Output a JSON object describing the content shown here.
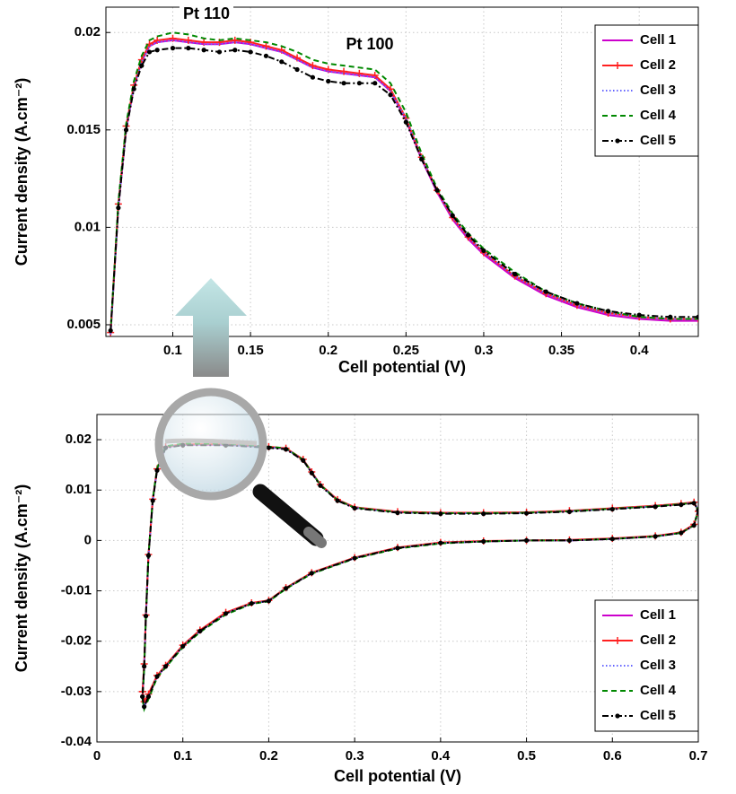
{
  "chart_data": [
    {
      "type": "line",
      "annotations": [
        "Pt 110",
        "Pt 100"
      ],
      "x_label": "Cell potential (V)",
      "y_label": "Current density (A.cm⁻²)",
      "xlim": [
        0.057,
        0.438
      ],
      "ylim": [
        0.0044,
        0.0213
      ],
      "xticks": [
        0.1,
        0.15,
        0.2,
        0.25,
        0.3,
        0.35,
        0.4
      ],
      "yticks": [
        0.005,
        0.01,
        0.015,
        0.02
      ],
      "grid": true,
      "legend": "upper right",
      "x": [
        0.06,
        0.065,
        0.07,
        0.075,
        0.08,
        0.085,
        0.09,
        0.1,
        0.11,
        0.12,
        0.13,
        0.14,
        0.15,
        0.16,
        0.17,
        0.18,
        0.19,
        0.2,
        0.21,
        0.22,
        0.23,
        0.24,
        0.25,
        0.26,
        0.27,
        0.28,
        0.29,
        0.3,
        0.32,
        0.34,
        0.36,
        0.38,
        0.4,
        0.42,
        0.438
      ],
      "series": [
        {
          "name": "Cell 1",
          "color": "#cc00cc",
          "values": [
            0.0045,
            0.011,
            0.015,
            0.0172,
            0.0185,
            0.0193,
            0.0195,
            0.0196,
            0.0195,
            0.0194,
            0.0194,
            0.0195,
            0.0194,
            0.0192,
            0.019,
            0.0186,
            0.0182,
            0.018,
            0.0179,
            0.0178,
            0.0177,
            0.017,
            0.0155,
            0.0135,
            0.0118,
            0.0104,
            0.0094,
            0.0086,
            0.0074,
            0.0065,
            0.0059,
            0.0055,
            0.0053,
            0.0052,
            0.0052
          ]
        },
        {
          "name": "Cell 2",
          "color": "#ff2020",
          "marker": "plus",
          "values": [
            0.0046,
            0.0112,
            0.0152,
            0.0173,
            0.0186,
            0.0194,
            0.0196,
            0.0197,
            0.0196,
            0.0195,
            0.0195,
            0.0196,
            0.0195,
            0.0193,
            0.0191,
            0.0187,
            0.0183,
            0.0181,
            0.018,
            0.0179,
            0.0178,
            0.0171,
            0.0156,
            0.0136,
            0.0119,
            0.0105,
            0.0095,
            0.0087,
            0.0075,
            0.0066,
            0.006,
            0.0056,
            0.0054,
            0.0053,
            0.0053
          ]
        },
        {
          "name": "Cell 3",
          "color": "#6666ff",
          "dash": "dotted",
          "values": [
            0.0045,
            0.0111,
            0.0151,
            0.0172,
            0.0185,
            0.0193,
            0.0195,
            0.0196,
            0.0195,
            0.0194,
            0.0194,
            0.0195,
            0.0194,
            0.0192,
            0.019,
            0.0186,
            0.0182,
            0.018,
            0.0179,
            0.0178,
            0.0177,
            0.017,
            0.0156,
            0.0136,
            0.0119,
            0.0105,
            0.0095,
            0.0087,
            0.0075,
            0.0066,
            0.006,
            0.0056,
            0.0054,
            0.0053,
            0.0053
          ]
        },
        {
          "name": "Cell 4",
          "color": "#008800",
          "dash": "dashed",
          "values": [
            0.0046,
            0.0113,
            0.0153,
            0.0175,
            0.0188,
            0.0196,
            0.0198,
            0.02,
            0.0199,
            0.0197,
            0.0196,
            0.0197,
            0.0196,
            0.0195,
            0.0193,
            0.019,
            0.0186,
            0.0184,
            0.0183,
            0.0182,
            0.0181,
            0.0174,
            0.0159,
            0.0138,
            0.012,
            0.0107,
            0.0097,
            0.0089,
            0.0077,
            0.0067,
            0.0061,
            0.0057,
            0.0054,
            0.0053,
            0.0053
          ]
        },
        {
          "name": "Cell 5",
          "color": "#000000",
          "dash": "dashdot",
          "marker": "dot",
          "values": [
            0.0047,
            0.011,
            0.015,
            0.0171,
            0.0183,
            0.019,
            0.0191,
            0.0192,
            0.0192,
            0.0191,
            0.019,
            0.0191,
            0.019,
            0.0188,
            0.0185,
            0.0181,
            0.0177,
            0.0175,
            0.0174,
            0.0174,
            0.0174,
            0.0168,
            0.0154,
            0.0135,
            0.0119,
            0.0106,
            0.0096,
            0.0088,
            0.0076,
            0.0067,
            0.0061,
            0.0057,
            0.0055,
            0.0054,
            0.0054
          ]
        }
      ]
    },
    {
      "type": "line",
      "x_label": "Cell potential (V)",
      "y_label": "Current density (A.cm⁻²)",
      "xlim": [
        0,
        0.7
      ],
      "ylim": [
        -0.04,
        0.025
      ],
      "xticks": [
        0,
        0.1,
        0.2,
        0.3,
        0.4,
        0.5,
        0.6,
        0.7
      ],
      "yticks": [
        -0.04,
        -0.03,
        -0.02,
        -0.01,
        0,
        0.01,
        0.02
      ],
      "grid": true,
      "legend": "lower right",
      "x": [
        0.053,
        0.055,
        0.06,
        0.07,
        0.08,
        0.1,
        0.12,
        0.15,
        0.18,
        0.2,
        0.22,
        0.25,
        0.3,
        0.35,
        0.4,
        0.45,
        0.5,
        0.55,
        0.6,
        0.65,
        0.68,
        0.695,
        0.7,
        0.695,
        0.68,
        0.65,
        0.6,
        0.55,
        0.5,
        0.45,
        0.4,
        0.35,
        0.3,
        0.28,
        0.26,
        0.25,
        0.24,
        0.22,
        0.2,
        0.15,
        0.1,
        0.08,
        0.07,
        0.065,
        0.06,
        0.057,
        0.055,
        0.053
      ],
      "series": [
        {
          "name": "Cell 1",
          "color": "#cc00cc",
          "values": [
            -0.031,
            -0.033,
            -0.031,
            -0.027,
            -0.025,
            -0.021,
            -0.018,
            -0.0145,
            -0.0125,
            -0.012,
            -0.0095,
            -0.0065,
            -0.0035,
            -0.0015,
            -0.0005,
            -0.0002,
            0,
            0,
            0.0003,
            0.0008,
            0.0015,
            0.003,
            0.006,
            0.0075,
            0.0072,
            0.0068,
            0.0063,
            0.0058,
            0.0055,
            0.0054,
            0.0054,
            0.0056,
            0.0065,
            0.008,
            0.011,
            0.0135,
            0.016,
            0.0182,
            0.0185,
            0.019,
            0.019,
            0.0185,
            0.014,
            0.008,
            -0.003,
            -0.015,
            -0.025,
            -0.031
          ]
        },
        {
          "name": "Cell 2",
          "color": "#ff2020",
          "marker": "plus",
          "values": [
            -0.03,
            -0.032,
            -0.0305,
            -0.0268,
            -0.0248,
            -0.0208,
            -0.0178,
            -0.0143,
            -0.0124,
            -0.0119,
            -0.0094,
            -0.0064,
            -0.0034,
            -0.0014,
            -0.0004,
            -0.0001,
            0,
            0.0001,
            0.0004,
            0.0009,
            0.0016,
            0.0032,
            0.0058,
            0.0076,
            0.0073,
            0.0069,
            0.0064,
            0.0059,
            0.0056,
            0.0055,
            0.0055,
            0.0057,
            0.0066,
            0.0081,
            0.0111,
            0.0136,
            0.0161,
            0.0183,
            0.0186,
            0.0191,
            0.0191,
            0.0186,
            0.0142,
            0.0082,
            -0.0028,
            -0.0148,
            -0.0245,
            -0.03
          ]
        },
        {
          "name": "Cell 3",
          "color": "#6666ff",
          "dash": "dotted",
          "values": [
            -0.031,
            -0.0328,
            -0.031,
            -0.027,
            -0.025,
            -0.021,
            -0.018,
            -0.0145,
            -0.0125,
            -0.012,
            -0.0095,
            -0.0065,
            -0.0035,
            -0.0015,
            -0.0005,
            -0.0002,
            0,
            0,
            0.0003,
            0.0008,
            0.0015,
            0.003,
            0.006,
            0.0075,
            0.0072,
            0.0068,
            0.0063,
            0.0058,
            0.0055,
            0.0054,
            0.0054,
            0.0056,
            0.0065,
            0.008,
            0.011,
            0.0135,
            0.016,
            0.0182,
            0.0185,
            0.019,
            0.019,
            0.0185,
            0.014,
            0.008,
            -0.003,
            -0.015,
            -0.025,
            -0.031
          ]
        },
        {
          "name": "Cell 4",
          "color": "#008800",
          "dash": "dashed",
          "values": [
            -0.0315,
            -0.0335,
            -0.0315,
            -0.0272,
            -0.0252,
            -0.0212,
            -0.0182,
            -0.0147,
            -0.0126,
            -0.0121,
            -0.0096,
            -0.0066,
            -0.0036,
            -0.0016,
            -0.0006,
            -0.0002,
            0,
            0,
            0.0003,
            0.0008,
            0.0015,
            0.003,
            0.006,
            0.0075,
            0.0072,
            0.0068,
            0.0063,
            0.0058,
            0.0055,
            0.0054,
            0.0054,
            0.0056,
            0.0065,
            0.008,
            0.011,
            0.0135,
            0.016,
            0.0183,
            0.0186,
            0.0192,
            0.0192,
            0.0187,
            0.0143,
            0.0082,
            -0.003,
            -0.0152,
            -0.0255,
            -0.0315
          ]
        },
        {
          "name": "Cell 5",
          "color": "#000000",
          "dash": "dashdot",
          "marker": "dot",
          "values": [
            -0.031,
            -0.033,
            -0.031,
            -0.027,
            -0.025,
            -0.021,
            -0.018,
            -0.0145,
            -0.0125,
            -0.012,
            -0.0095,
            -0.0065,
            -0.0035,
            -0.0015,
            -0.0005,
            -0.0002,
            0,
            0,
            0.0003,
            0.0008,
            0.0015,
            0.003,
            0.006,
            0.0074,
            0.0071,
            0.0067,
            0.0062,
            0.0057,
            0.0054,
            0.0053,
            0.0053,
            0.0055,
            0.0064,
            0.0079,
            0.0109,
            0.0134,
            0.0159,
            0.0181,
            0.0184,
            0.0189,
            0.0189,
            0.0184,
            0.0139,
            0.0079,
            -0.003,
            -0.015,
            -0.025,
            -0.031
          ]
        }
      ]
    }
  ]
}
